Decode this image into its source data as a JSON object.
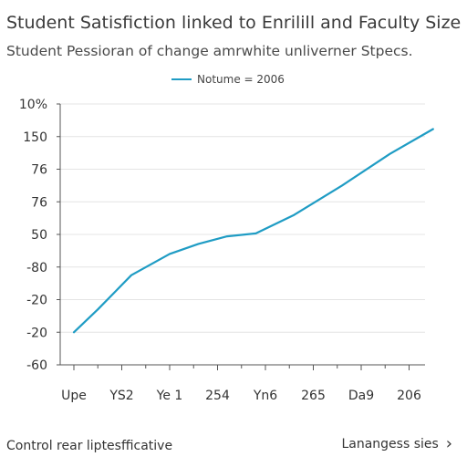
{
  "chart_data": {
    "type": "line",
    "title": "Student Satisfiction linked to Enrilill and Faculty Size",
    "subtitle": "Student Pessioran of change amrwhite unliverner Stpecs.",
    "xlabel": "",
    "ylabel": "",
    "categories": [
      "Upe",
      "YS2",
      "Ye 1",
      "254",
      "Yn6",
      "265",
      "Da9",
      "206"
    ],
    "ytick_labels": [
      "10%",
      "150",
      "76",
      "76",
      "50",
      "-80",
      "-20",
      "-20",
      "-60"
    ],
    "series": [
      {
        "name": "Notume = 2006",
        "color": "#1f9cc4",
        "x": [
          0,
          0.5,
          1.2,
          2.0,
          2.6,
          3.2,
          3.8,
          4.6,
          5.6,
          6.6,
          7.5
        ],
        "y": [
          1.0,
          1.7,
          2.75,
          3.4,
          3.71,
          3.94,
          4.03,
          4.6,
          5.5,
          6.47,
          7.23
        ]
      }
    ],
    "ylim": [
      0,
      8
    ],
    "grid": true,
    "legend": "top-center"
  },
  "footer": {
    "left_text": "Control rear liptesfficative",
    "right_link": "Lanangess sies",
    "right_icon": "chevron-right-icon"
  }
}
